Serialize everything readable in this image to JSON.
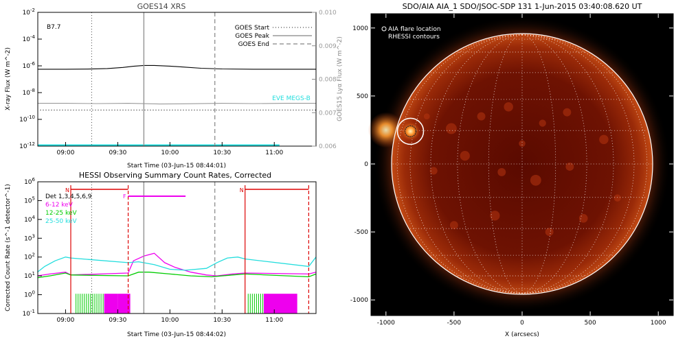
{
  "chart_data": [
    {
      "type": "line",
      "title": "GOES14 XRS",
      "xlabel": "Start Time (03-Jun-15 08:44:01)",
      "ylabel": "X-ray Flux (W m^-2)",
      "y2label": "GOES15 Lyα Flux (W m^-2)",
      "flare_class": "B7.7",
      "x_range_hours": [
        8.7336,
        11.4
      ],
      "y_log_range": [
        -12,
        -2
      ],
      "y2_range": [
        0.006,
        0.01
      ],
      "x_ticks": [
        "09:00",
        "09:30",
        "10:00",
        "10:30",
        "11:00"
      ],
      "y_ticks": [
        "10^-2",
        "10^-4",
        "10^-6",
        "10^-8",
        "10^-10",
        "10^-12"
      ],
      "y2_ticks": [
        "0.010",
        "0.009",
        "0.008",
        "0.007",
        "0.006"
      ],
      "legend": [
        "GOES Start",
        "GOES Peak",
        "GOES End"
      ],
      "eve_label": "EVE MEGS-B",
      "markers": {
        "start": 9.25,
        "peak": 9.75,
        "end": 10.43
      },
      "series": [
        {
          "name": "GOES long channel",
          "color": "#000000",
          "x": [
            8.73,
            9.0,
            9.2,
            9.4,
            9.55,
            9.65,
            9.75,
            9.85,
            10.0,
            10.15,
            10.3,
            10.5,
            10.8,
            11.1,
            11.4
          ],
          "y_log": [
            -6.25,
            -6.25,
            -6.24,
            -6.2,
            -6.12,
            -6.03,
            -5.97,
            -5.97,
            -6.02,
            -6.1,
            -6.18,
            -6.23,
            -6.25,
            -6.25,
            -6.25
          ]
        },
        {
          "name": "GOES15 Lyα",
          "color": "#999999",
          "x": [
            8.73,
            9.0,
            9.3,
            9.6,
            9.9,
            10.2,
            10.5,
            10.8,
            11.1,
            11.4
          ],
          "y_log": [
            -8.8,
            -8.8,
            -8.82,
            -8.8,
            -8.85,
            -8.83,
            -8.8,
            -8.82,
            -8.8,
            -8.8
          ]
        },
        {
          "name": "GOES short channel",
          "color": "#000000",
          "dotted": true,
          "x": [
            8.73,
            11.4
          ],
          "y_log": [
            -9.3,
            -9.3
          ]
        },
        {
          "name": "EVE MEGS-B",
          "color": "#22dddd",
          "x": [
            8.73,
            11.05
          ],
          "y_log": [
            -11.95,
            -11.95
          ]
        }
      ]
    },
    {
      "type": "line",
      "title": "HESSI Observing Summary Count Rates, Corrected",
      "xlabel": "Start Time (03-Jun-15 08:44:02)",
      "ylabel": "Corrected Count Rate (s^-1 detector^-1)",
      "x_range_hours": [
        8.7339,
        11.4
      ],
      "y_log_range": [
        -1,
        6
      ],
      "x_ticks": [
        "09:00",
        "09:30",
        "10:00",
        "10:30",
        "11:00"
      ],
      "y_ticks": [
        "10^6",
        "10^5",
        "10^4",
        "10^3",
        "10^2",
        "10^1",
        "10^0",
        "10^-1"
      ],
      "legend": [
        "Det 1,3,4,5,6,9",
        "6-12 keV",
        "12-25 keV",
        "25-50 keV"
      ],
      "legend_colors": [
        "#000000",
        "#ee00ee",
        "#00cc00",
        "#22dddd"
      ],
      "night_flag_label": "N",
      "flare_flag_label": "F",
      "night_intervals": [
        [
          9.05,
          9.6
        ],
        [
          10.72,
          11.33
        ]
      ],
      "flare_interval": [
        9.6,
        10.15
      ],
      "markers": {
        "start": 9.25,
        "peak": 9.75,
        "end": 10.43
      },
      "series": [
        {
          "name": "6-12 keV",
          "color": "#ee00ee",
          "x": [
            8.73,
            8.85,
            9.0,
            9.05,
            9.6,
            9.65,
            9.75,
            9.85,
            9.95,
            10.05,
            10.2,
            10.35,
            10.45,
            10.6,
            10.72,
            11.33,
            11.4
          ],
          "y_log": [
            1.0,
            1.1,
            1.2,
            1.05,
            1.15,
            1.8,
            2.05,
            2.2,
            1.7,
            1.45,
            1.2,
            1.05,
            1.0,
            1.1,
            1.15,
            1.1,
            1.2
          ]
        },
        {
          "name": "12-25 keV",
          "color": "#00cc00",
          "x": [
            8.73,
            8.85,
            9.0,
            9.05,
            9.6,
            9.7,
            9.8,
            10.0,
            10.2,
            10.4,
            10.6,
            10.72,
            11.33,
            11.4
          ],
          "y_log": [
            0.9,
            1.0,
            1.15,
            1.05,
            1.0,
            1.2,
            1.2,
            1.1,
            1.0,
            0.95,
            1.05,
            1.1,
            0.95,
            1.1
          ]
        },
        {
          "name": "25-50 keV",
          "color": "#22dddd",
          "x": [
            8.73,
            8.8,
            8.9,
            9.0,
            9.05,
            9.6,
            9.7,
            9.85,
            10.0,
            10.15,
            10.35,
            10.45,
            10.55,
            10.65,
            10.72,
            11.33,
            11.4
          ],
          "y_log": [
            1.2,
            1.5,
            1.8,
            2.0,
            1.95,
            1.7,
            1.75,
            1.6,
            1.35,
            1.3,
            1.4,
            1.7,
            1.95,
            2.0,
            1.9,
            1.5,
            2.0
          ]
        }
      ]
    },
    {
      "type": "image",
      "title": "SDO/AIA AIA_1 SDO/JSOC-SDP 131  1-Jun-2015 03:40:08.620 UT",
      "xlabel": "X (arcsecs)",
      "ylabel": "",
      "x_range": [
        -1110,
        1110
      ],
      "y_range": [
        -1110,
        1110
      ],
      "x_ticks": [
        "-1000",
        "-500",
        "0",
        "500",
        "1000"
      ],
      "y_ticks": [
        "1000",
        "500",
        "0",
        "-500",
        "-1000"
      ],
      "legend": [
        "AIA flare location",
        "RHESSI contours"
      ],
      "solar_radius_arcsec": 950,
      "flare_location": {
        "x": -820,
        "y": 240
      }
    }
  ]
}
